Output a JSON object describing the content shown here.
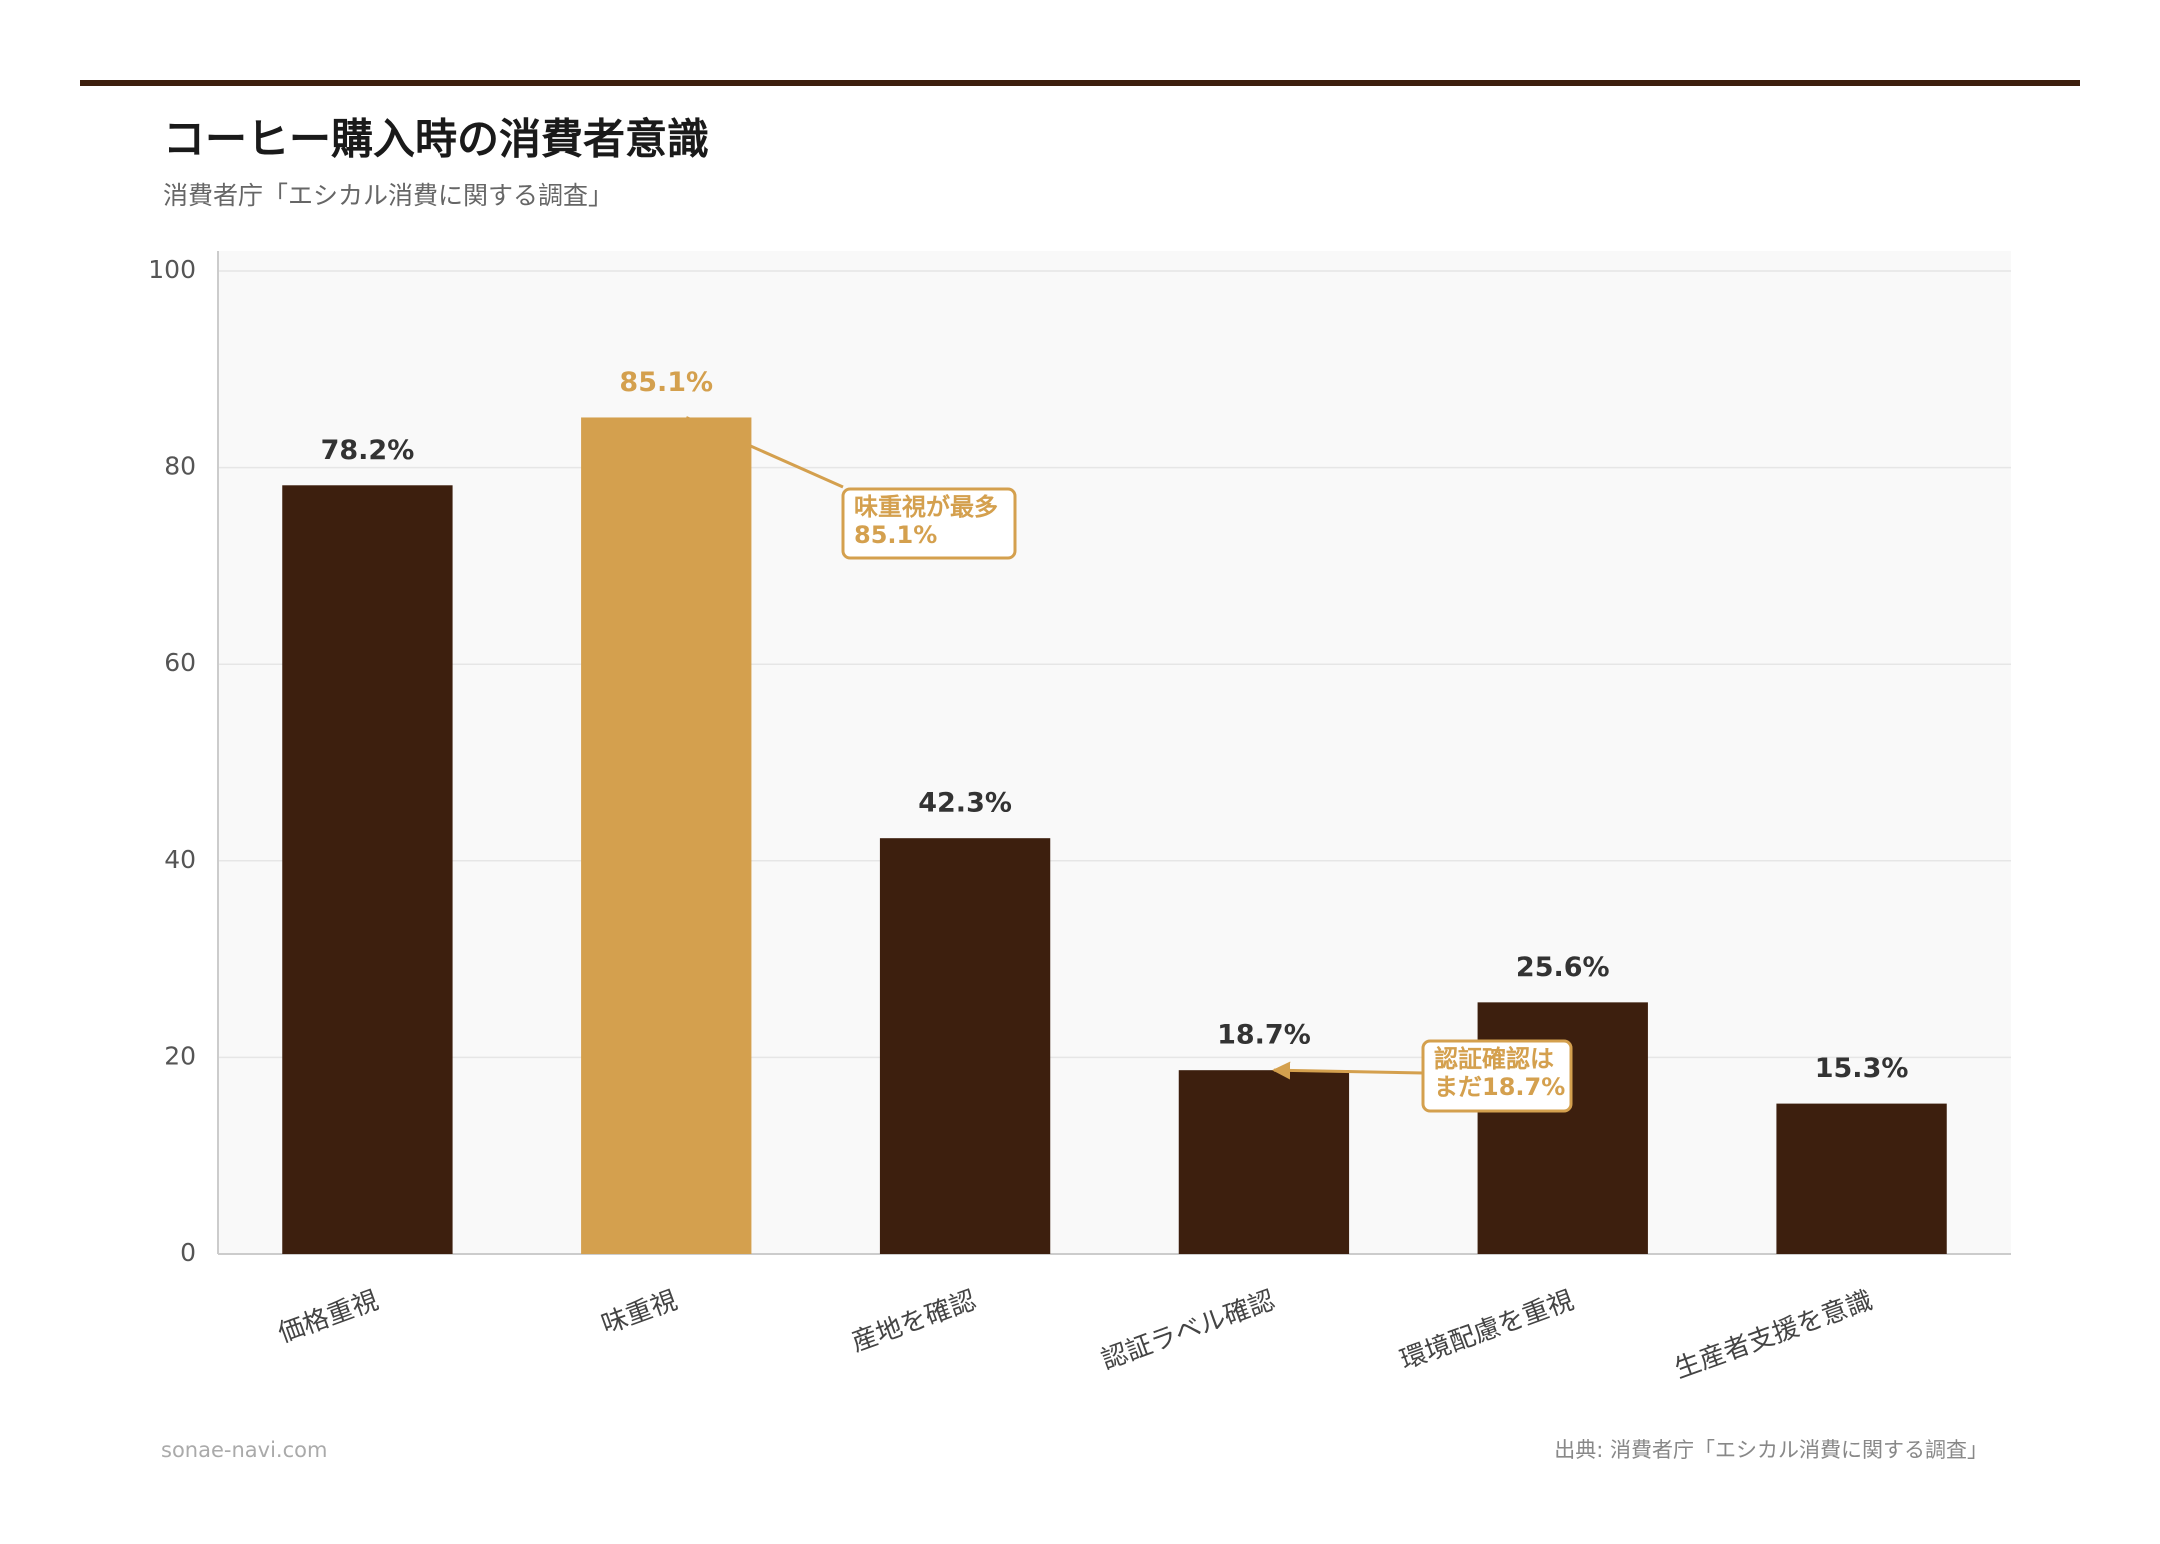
{
  "chart_data": {
    "type": "bar",
    "title": "コーヒー購入時の消費者意識",
    "subtitle": "消費者庁「エシカル消費に関する調査」",
    "categories": [
      "価格重視",
      "味重視",
      "産地を確認",
      "認証ラベル確認",
      "環境配慮を重視",
      "生産者支援を意識"
    ],
    "values": [
      78.2,
      85.1,
      42.3,
      18.7,
      25.6,
      15.3
    ],
    "value_labels": [
      "78.2%",
      "85.1%",
      "42.3%",
      "18.7%",
      "25.6%",
      "15.3%"
    ],
    "colors": [
      "#3d1f0e",
      "#d4a04e",
      "#3d1f0e",
      "#3d1f0e",
      "#3d1f0e",
      "#3d1f0e"
    ],
    "ylim": [
      0,
      100
    ],
    "yticks": [
      0,
      20,
      40,
      60,
      80,
      100
    ],
    "grid": true,
    "annotations": [
      {
        "lines": [
          "味重視が最多",
          "85.1%"
        ]
      },
      {
        "lines": [
          "認証確認は",
          "まだ18.7%"
        ]
      }
    ],
    "site": "sonae-navi.com",
    "source": "出典: 消費者庁「エシカル消費に関する調査」"
  }
}
